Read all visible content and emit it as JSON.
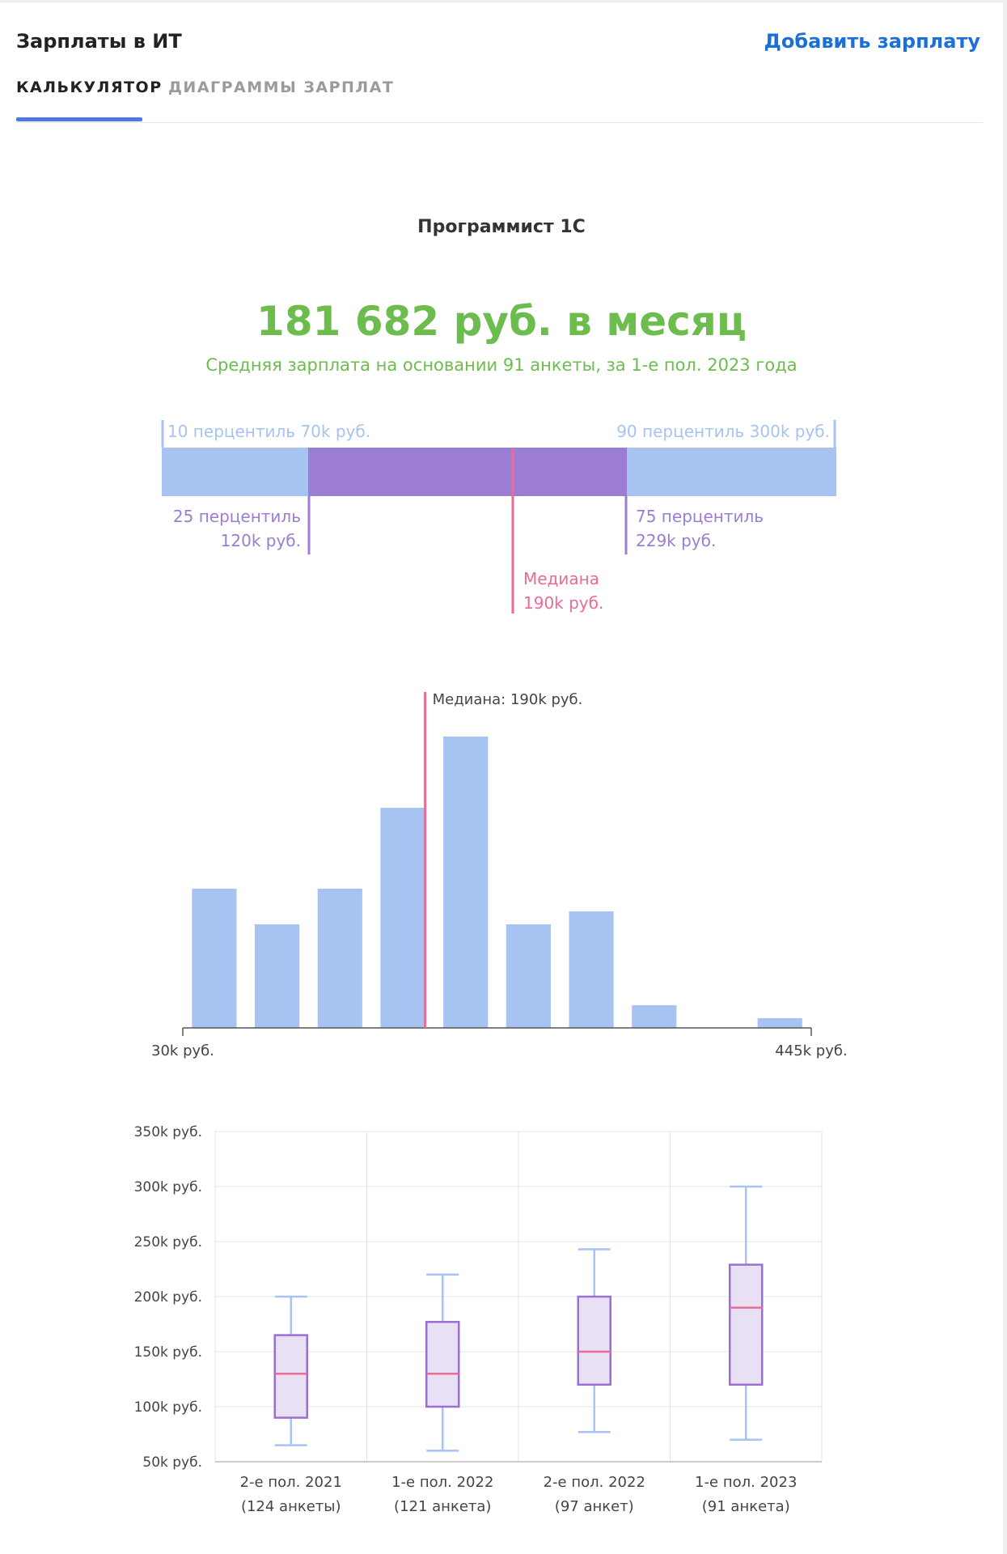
{
  "header": {
    "title": "Зарплаты в ИТ",
    "add_salary": "Добавить зарплату"
  },
  "tabs": [
    {
      "label": "КАЛЬКУЛЯТОР",
      "active": true
    },
    {
      "label": "ДИАГРАММЫ ЗАРПЛАТ",
      "active": false
    }
  ],
  "position": "Программист 1С",
  "average": {
    "value_label": "181 682 руб. в месяц",
    "subtitle": "Средняя зарплата на основании 91 анкеты, за 1-е пол. 2023 года"
  },
  "percentiles": {
    "p10": {
      "line1": "10 перцентиль 70k руб.",
      "value": 70
    },
    "p90": {
      "line1": "90 перцентиль 300k руб.",
      "value": 300
    },
    "p25": {
      "line1": "25 перцентиль",
      "line2": "120k руб.",
      "value": 120
    },
    "p75": {
      "line1": "75 перцентиль",
      "line2": "229k руб.",
      "value": 229
    },
    "median": {
      "line1": "Медиана",
      "line2": "190k руб.",
      "value": 190
    }
  },
  "colors": {
    "green": "#6dbc4e",
    "light_blue": "#a7c3f2",
    "purple": "#9b7dd4",
    "pink": "#ea6b96",
    "box_fill": "#e8e0f4",
    "box_stroke": "#9b6fd0",
    "whisker": "#a7c3f2"
  },
  "chart_data": [
    {
      "type": "bar",
      "title": "",
      "x_min_label": "30k руб.",
      "x_max_label": "445k руб.",
      "xlim": [
        30,
        445
      ],
      "values": [
        43,
        32,
        43,
        68,
        90,
        32,
        36,
        7,
        0,
        3
      ],
      "ylim": [
        0,
        100
      ],
      "median_label": "Медиана: 190k руб.",
      "median_value": 190
    },
    {
      "type": "boxplot",
      "y_ticks": [
        {
          "value": 350,
          "label": "350k руб."
        },
        {
          "value": 300,
          "label": "300k руб."
        },
        {
          "value": 250,
          "label": "250k руб."
        },
        {
          "value": 200,
          "label": "200k руб."
        },
        {
          "value": 150,
          "label": "150k руб."
        },
        {
          "value": 100,
          "label": "100k руб."
        },
        {
          "value": 50,
          "label": "50k руб."
        }
      ],
      "ylim": [
        50,
        350
      ],
      "periods": [
        {
          "label": "2-е пол. 2021",
          "count": "(124 анкеты)",
          "min": 65,
          "q1": 90,
          "median": 130,
          "q3": 165,
          "max": 200
        },
        {
          "label": "1-е пол. 2022",
          "count": "(121 анкета)",
          "min": 60,
          "q1": 100,
          "median": 130,
          "q3": 177,
          "max": 220
        },
        {
          "label": "2-е пол. 2022",
          "count": "(97 анкет)",
          "min": 77,
          "q1": 120,
          "median": 150,
          "q3": 200,
          "max": 243
        },
        {
          "label": "1-е пол. 2023",
          "count": "(91 анкета)",
          "min": 70,
          "q1": 120,
          "median": 190,
          "q3": 229,
          "max": 300
        }
      ]
    }
  ]
}
